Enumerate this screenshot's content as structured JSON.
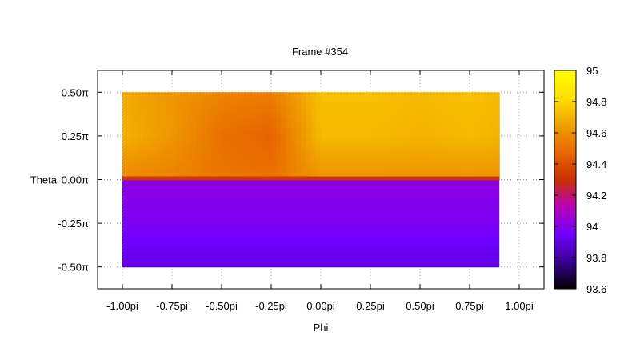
{
  "chart_data": {
    "type": "heatmap",
    "title": "Frame #354",
    "xlabel": "Phi",
    "ylabel": "Theta",
    "xlim": [
      -1.125,
      1.125
    ],
    "ylim": [
      -0.625,
      0.625
    ],
    "x_ticks": [
      {
        "value": -1.0,
        "label": "-1.00pi"
      },
      {
        "value": -0.75,
        "label": "-0.75pi"
      },
      {
        "value": -0.5,
        "label": "-0.50pi"
      },
      {
        "value": -0.25,
        "label": "-0.25pi"
      },
      {
        "value": 0.0,
        "label": "0.00pi"
      },
      {
        "value": 0.25,
        "label": "0.25pi"
      },
      {
        "value": 0.5,
        "label": "0.50pi"
      },
      {
        "value": 0.75,
        "label": "0.75pi"
      },
      {
        "value": 1.0,
        "label": "1.00pi"
      }
    ],
    "y_ticks": [
      {
        "value": 0.5,
        "label": "0.50π"
      },
      {
        "value": 0.25,
        "label": "0.25π"
      },
      {
        "value": 0.0,
        "label": "0.00π"
      },
      {
        "value": -0.25,
        "label": "-0.25π"
      },
      {
        "value": -0.5,
        "label": "-0.50π"
      }
    ],
    "grid": true,
    "data_extent": {
      "phi": [
        -1.0,
        0.9
      ],
      "theta": [
        -0.5,
        0.5
      ]
    },
    "upper_region": {
      "theta": [
        0.0,
        0.5
      ],
      "phi_values": [
        -1.0,
        -0.75,
        -0.5,
        -0.25,
        0.0,
        0.25,
        0.5,
        0.75,
        0.9
      ],
      "theta_values": [
        0.5,
        0.25,
        0.03
      ],
      "values": [
        [
          94.68,
          94.62,
          94.56,
          94.54,
          94.74,
          94.74,
          94.72,
          94.74,
          94.72
        ],
        [
          94.7,
          94.62,
          94.5,
          94.46,
          94.72,
          94.72,
          94.7,
          94.72,
          94.7
        ],
        [
          94.58,
          94.56,
          94.52,
          94.5,
          94.62,
          94.62,
          94.62,
          94.62,
          94.62
        ]
      ]
    },
    "boundary_value": 94.32,
    "lower_region": {
      "theta": [
        -0.5,
        0.0
      ],
      "theta_values": [
        -0.02,
        -0.25,
        -0.5
      ],
      "values": [
        94.02,
        93.98,
        93.9
      ]
    },
    "colorbar": {
      "range": [
        93.6,
        95.0
      ],
      "ticks": [
        {
          "value": 95,
          "label": "95"
        },
        {
          "value": 94.8,
          "label": "94.8"
        },
        {
          "value": 94.6,
          "label": "94.6"
        },
        {
          "value": 94.4,
          "label": "94.4"
        },
        {
          "value": 94.2,
          "label": "94.2"
        },
        {
          "value": 94,
          "label": "94"
        },
        {
          "value": 93.8,
          "label": "93.8"
        },
        {
          "value": 93.6,
          "label": "93.6"
        }
      ],
      "palette": [
        "#000000",
        "#3a0096",
        "#7000ff",
        "#b800b8",
        "#c83000",
        "#e86800",
        "#f0a000",
        "#ffe000",
        "#ffff00"
      ]
    }
  }
}
